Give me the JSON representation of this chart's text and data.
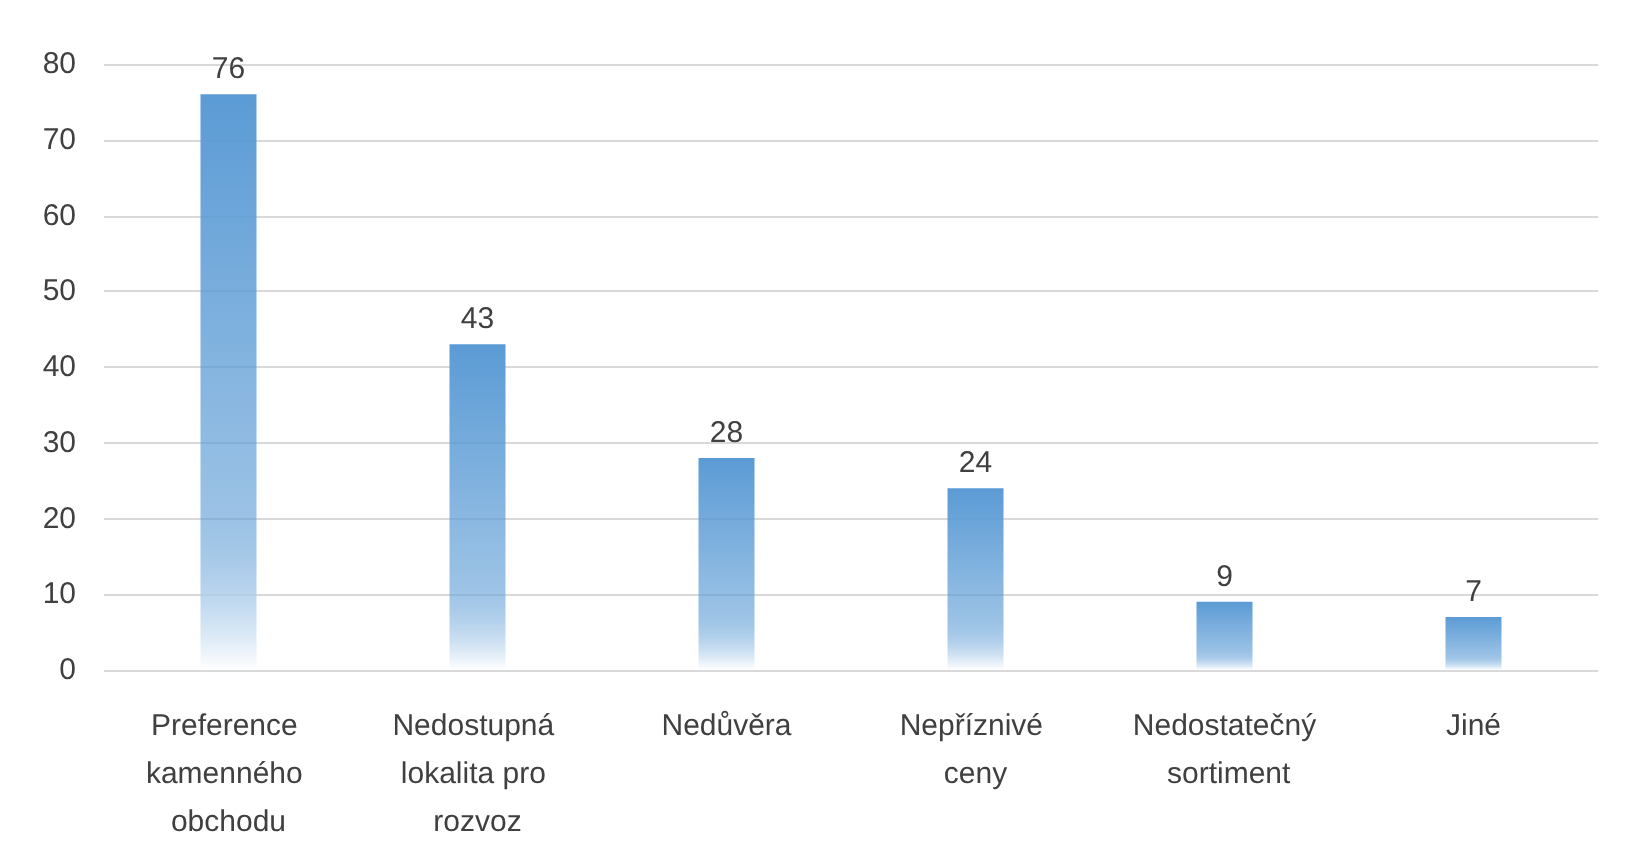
{
  "chart_data": {
    "type": "bar",
    "categories": [
      "Preference kamenného obchodu",
      "Nedostupná lokalita pro rozvoz",
      "Nedůvěra",
      "Nepříznivé ceny",
      "Nedostatečný sortiment",
      "Jiné"
    ],
    "values": [
      76,
      43,
      28,
      24,
      9,
      7
    ],
    "color": "#5b9bd5",
    "ylim": [
      0,
      80
    ],
    "yticks": [
      0,
      10,
      20,
      30,
      40,
      50,
      60,
      70,
      80
    ],
    "grid": "y",
    "data_labels": true
  }
}
